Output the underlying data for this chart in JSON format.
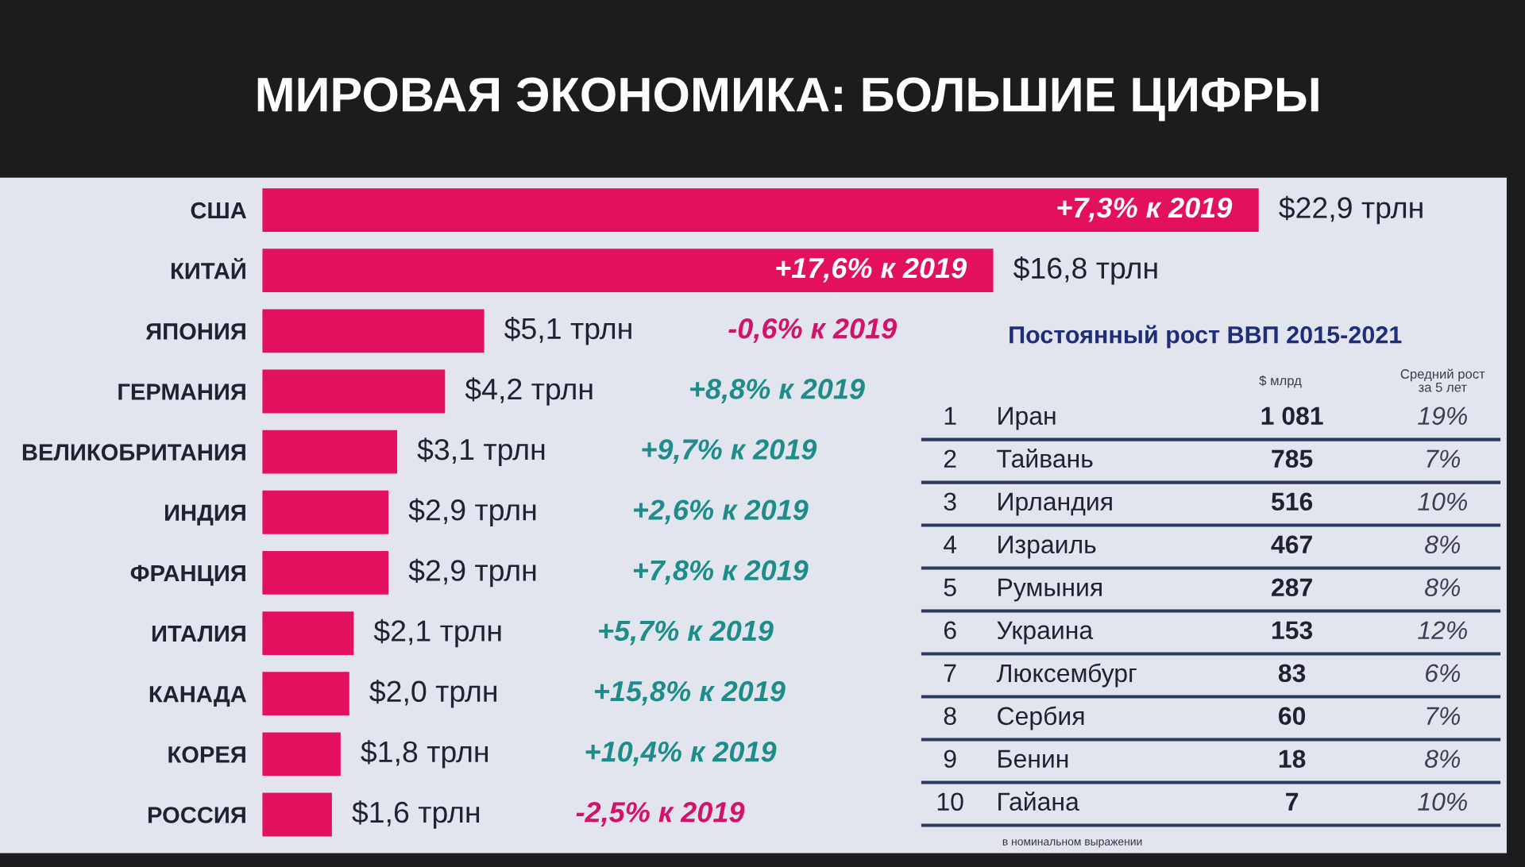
{
  "chart_data": [
    {
      "type": "bar",
      "orientation": "horizontal",
      "title": "МИРОВАЯ ЭКОНОМИКА: БОЛЬШИЕ ЦИФРЫ",
      "categories": [
        "США",
        "КИТАЙ",
        "ЯПОНИЯ",
        "ГЕРМАНИЯ",
        "ВЕЛИКОБРИТАНИЯ",
        "ИНДИЯ",
        "ФРАНЦИЯ",
        "ИТАЛИЯ",
        "КАНАДА",
        "КОРЕЯ",
        "РОССИЯ"
      ],
      "values": [
        22.9,
        16.8,
        5.1,
        4.2,
        3.1,
        2.9,
        2.9,
        2.1,
        2.0,
        1.8,
        1.6
      ],
      "value_labels": [
        "$22,9 трлн",
        "$16,8 трлн",
        "$5,1 трлн",
        "$4,2 трлн",
        "$3,1 трлн",
        "$2,9 трлн",
        "$2,9 трлн",
        "$2,1 трлн",
        "$2,0 трлн",
        "$1,8 трлн",
        "$1,6 трлн"
      ],
      "color": "#e3105e",
      "xlim": [
        0,
        28.6
      ],
      "tick_labels": "y",
      "annotations": [
        "+7,3% к 2019",
        "+17,6% к 2019",
        "-0,6% к 2019",
        "+8,8% к 2019",
        "+9,7% к 2019",
        "+2,6% к 2019",
        "+7,8% к 2019",
        "+5,7% к 2019",
        "+15,8% к 2019",
        "+10,4% к 2019",
        "-2,5% к 2019"
      ]
    },
    {
      "type": "other",
      "title": "Постоянный рост ВВП 2015-2021",
      "categories": [
        "Иран",
        "Тайвань",
        "Ирландия",
        "Израиль",
        "Румыния",
        "Украина",
        "Люксембург",
        "Сербия",
        "Бенин",
        "Гайана"
      ],
      "data_labels": true,
      "series": [
        {
          "values": [
            1,
            2,
            3,
            4,
            5,
            6,
            7,
            8,
            9,
            10
          ]
        },
        {
          "name": "$ млрд",
          "values": [
            1081,
            785,
            516,
            467,
            287,
            153,
            83,
            60,
            18,
            7
          ],
          "value_labels": [
            "1 081",
            "785",
            "516",
            "467",
            "287",
            "153",
            "83",
            "60",
            "18",
            "7"
          ]
        },
        {
          "name": "Средний рост\nза 5 лет",
          "values": [
            19,
            7,
            10,
            8,
            8,
            12,
            6,
            7,
            8,
            10
          ],
          "value_labels": [
            "19%",
            "7%",
            "10%",
            "8%",
            "8%",
            "12%",
            "6%",
            "7%",
            "8%",
            "10%"
          ]
        }
      ],
      "annotations": [
        "в номинальном выражении"
      ]
    }
  ]
}
